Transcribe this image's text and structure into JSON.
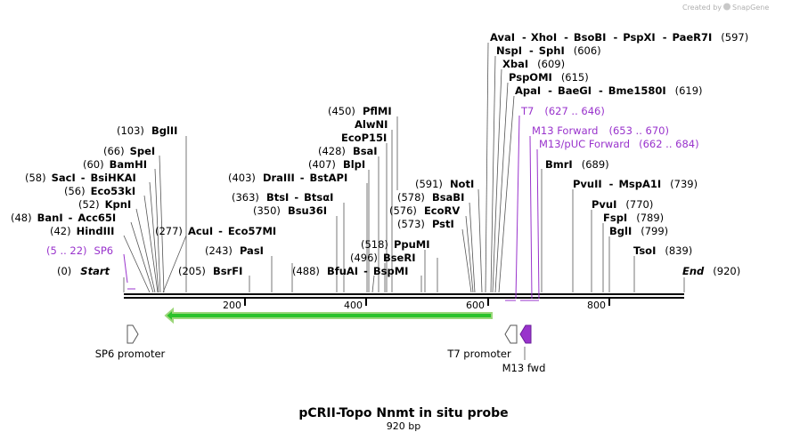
{
  "title": "pCRII-Topo Nnmt in situ probe",
  "length_label": "920 bp",
  "credit": "Created by",
  "credit_brand": "SnapGene",
  "length": 920,
  "axis_ticks": [
    {
      "value": 200,
      "label": "200"
    },
    {
      "value": 400,
      "label": "400"
    },
    {
      "value": 600,
      "label": "600"
    },
    {
      "value": 800,
      "label": "800"
    }
  ],
  "ends": {
    "start": {
      "pos": "(0)",
      "name": "Start"
    },
    "end": {
      "pos": "(920)",
      "name": "End"
    }
  },
  "sites": [
    {
      "pos": "(5 .. 22)",
      "name": "SP6",
      "purple": true
    },
    {
      "pos": "(42)",
      "name": "HindIII"
    },
    {
      "pos": "(48)",
      "name": "BanI",
      "extra": "Acc65I"
    },
    {
      "pos": "(52)",
      "name": "KpnI"
    },
    {
      "pos": "(56)",
      "name": "Eco53kI"
    },
    {
      "pos": "(58)",
      "name": "SacI",
      "extra": "BsiHKAI"
    },
    {
      "pos": "(60)",
      "name": "BamHI"
    },
    {
      "pos": "(66)",
      "name": "SpeI"
    },
    {
      "pos": "(103)",
      "name": "BglII"
    },
    {
      "pos": "(205)",
      "name": "BsrFI"
    },
    {
      "pos": "(277)",
      "name": "AcuI",
      "extra": "Eco57MI"
    },
    {
      "pos": "(243)",
      "name": "PasI"
    },
    {
      "pos": "(350)",
      "name": "Bsu36I"
    },
    {
      "pos": "(363)",
      "name": "BtsI",
      "extra": "BtsαI"
    },
    {
      "pos": "(403)",
      "name": "DraIII",
      "extra": "BstAPI"
    },
    {
      "pos": "(407)",
      "name": "BlpI"
    },
    {
      "pos": "(428)",
      "name": "BsaI"
    },
    {
      "pos": "",
      "name": "EcoP15I"
    },
    {
      "pos": "",
      "name": "AlwNI"
    },
    {
      "pos": "(450)",
      "name": "PflMI"
    },
    {
      "pos": "(488)",
      "name": "BfuAI",
      "extra": "BspMI"
    },
    {
      "pos": "(496)",
      "name": "BseRI"
    },
    {
      "pos": "(518)",
      "name": "PpuMI"
    },
    {
      "pos": "(573)",
      "name": "PstI"
    },
    {
      "pos": "(576)",
      "name": "EcoRV"
    },
    {
      "pos": "(578)",
      "name": "BsaBI"
    },
    {
      "pos": "(591)",
      "name": "NotI"
    },
    {
      "pos": "(597)",
      "name": "AvaI",
      "extra": "XhoI",
      "extra2": "BsoBI",
      "extra3": "PspXI",
      "extra4": "PaeR7I"
    },
    {
      "pos": "(606)",
      "name": "NspI",
      "extra": "SphI"
    },
    {
      "pos": "(609)",
      "name": "XbaI"
    },
    {
      "pos": "(615)",
      "name": "PspOMI"
    },
    {
      "pos": "(619)",
      "name": "ApaI",
      "extra": "BaeGI",
      "extra2": "Bme1580I"
    },
    {
      "pos": "(627 .. 646)",
      "name": "T7",
      "purple": true
    },
    {
      "pos": "(653 .. 670)",
      "name": "M13 Forward",
      "purple": true
    },
    {
      "pos": "(662 .. 684)",
      "name": "M13/pUC Forward",
      "purple": true
    },
    {
      "pos": "(689)",
      "name": "BmrI"
    },
    {
      "pos": "(739)",
      "name": "PvuII",
      "extra": "MspA1I"
    },
    {
      "pos": "(770)",
      "name": "PvuI"
    },
    {
      "pos": "(789)",
      "name": "FspI"
    },
    {
      "pos": "(799)",
      "name": "BglI"
    },
    {
      "pos": "(839)",
      "name": "TsoI"
    }
  ],
  "features": [
    {
      "name": "SP6 promoter"
    },
    {
      "name": "T7 promoter"
    },
    {
      "name": "M13 fwd"
    }
  ],
  "colors": {
    "purple": "#9933cc",
    "green_fill": "#2bc22b",
    "green_border": "#9cd67a"
  }
}
